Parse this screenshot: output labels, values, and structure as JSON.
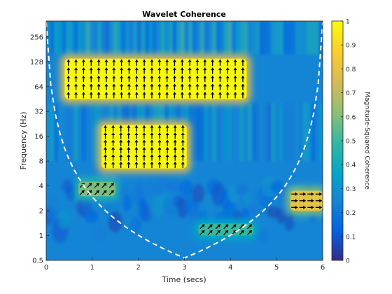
{
  "chart_data": {
    "type": "heatmap",
    "title": "Wavelet Coherence",
    "xlabel": "Time (secs)",
    "ylabel": "Frequency (Hz)",
    "xlim": [
      0,
      6
    ],
    "ylim": [
      0.5,
      400
    ],
    "y_scale": "log2",
    "x_ticks": [
      "0",
      "1",
      "2",
      "3",
      "4",
      "5",
      "6"
    ],
    "y_ticks": [
      "0.5",
      "1",
      "2",
      "4",
      "8",
      "16",
      "32",
      "64",
      "128",
      "256"
    ],
    "colorbar": {
      "label": "Magnitude-Squared Coherence",
      "range": [
        0,
        1
      ],
      "ticks": [
        "0",
        "0.1",
        "0.2",
        "0.3",
        "0.4",
        "0.5",
        "0.6",
        "0.7",
        "0.8",
        "0.9",
        "1"
      ],
      "colormap": "parula"
    },
    "high_coherence_regions": [
      {
        "t_start": 0.4,
        "t_end": 4.35,
        "f_low": 45,
        "f_high": 140,
        "coherence": 1.0,
        "phase_arrows": "up"
      },
      {
        "t_start": 1.2,
        "t_end": 3.05,
        "f_low": 6.5,
        "f_high": 22,
        "coherence": 1.0,
        "phase_arrows": "up"
      },
      {
        "t_start": 5.3,
        "t_end": 6.0,
        "f_low": 2.0,
        "f_high": 3.5,
        "coherence": 0.8,
        "phase_arrows": "right"
      },
      {
        "t_start": 0.7,
        "t_end": 1.5,
        "f_low": 3.0,
        "f_high": 4.5,
        "coherence": 0.6,
        "phase_arrows": "up-right"
      },
      {
        "t_start": 3.3,
        "t_end": 4.5,
        "f_low": 1.0,
        "f_high": 1.4,
        "coherence": 0.5,
        "phase_arrows": "up-right"
      }
    ],
    "cone_of_influence": {
      "style": "dashed",
      "color": "#ffffff"
    },
    "background_coherence": 0.25
  },
  "colors": {
    "parula": [
      "#352a87",
      "#0363e1",
      "#1485d4",
      "#06a7c6",
      "#38b99e",
      "#92bf73",
      "#d9ba56",
      "#fcce2e",
      "#f9fb0e"
    ]
  }
}
